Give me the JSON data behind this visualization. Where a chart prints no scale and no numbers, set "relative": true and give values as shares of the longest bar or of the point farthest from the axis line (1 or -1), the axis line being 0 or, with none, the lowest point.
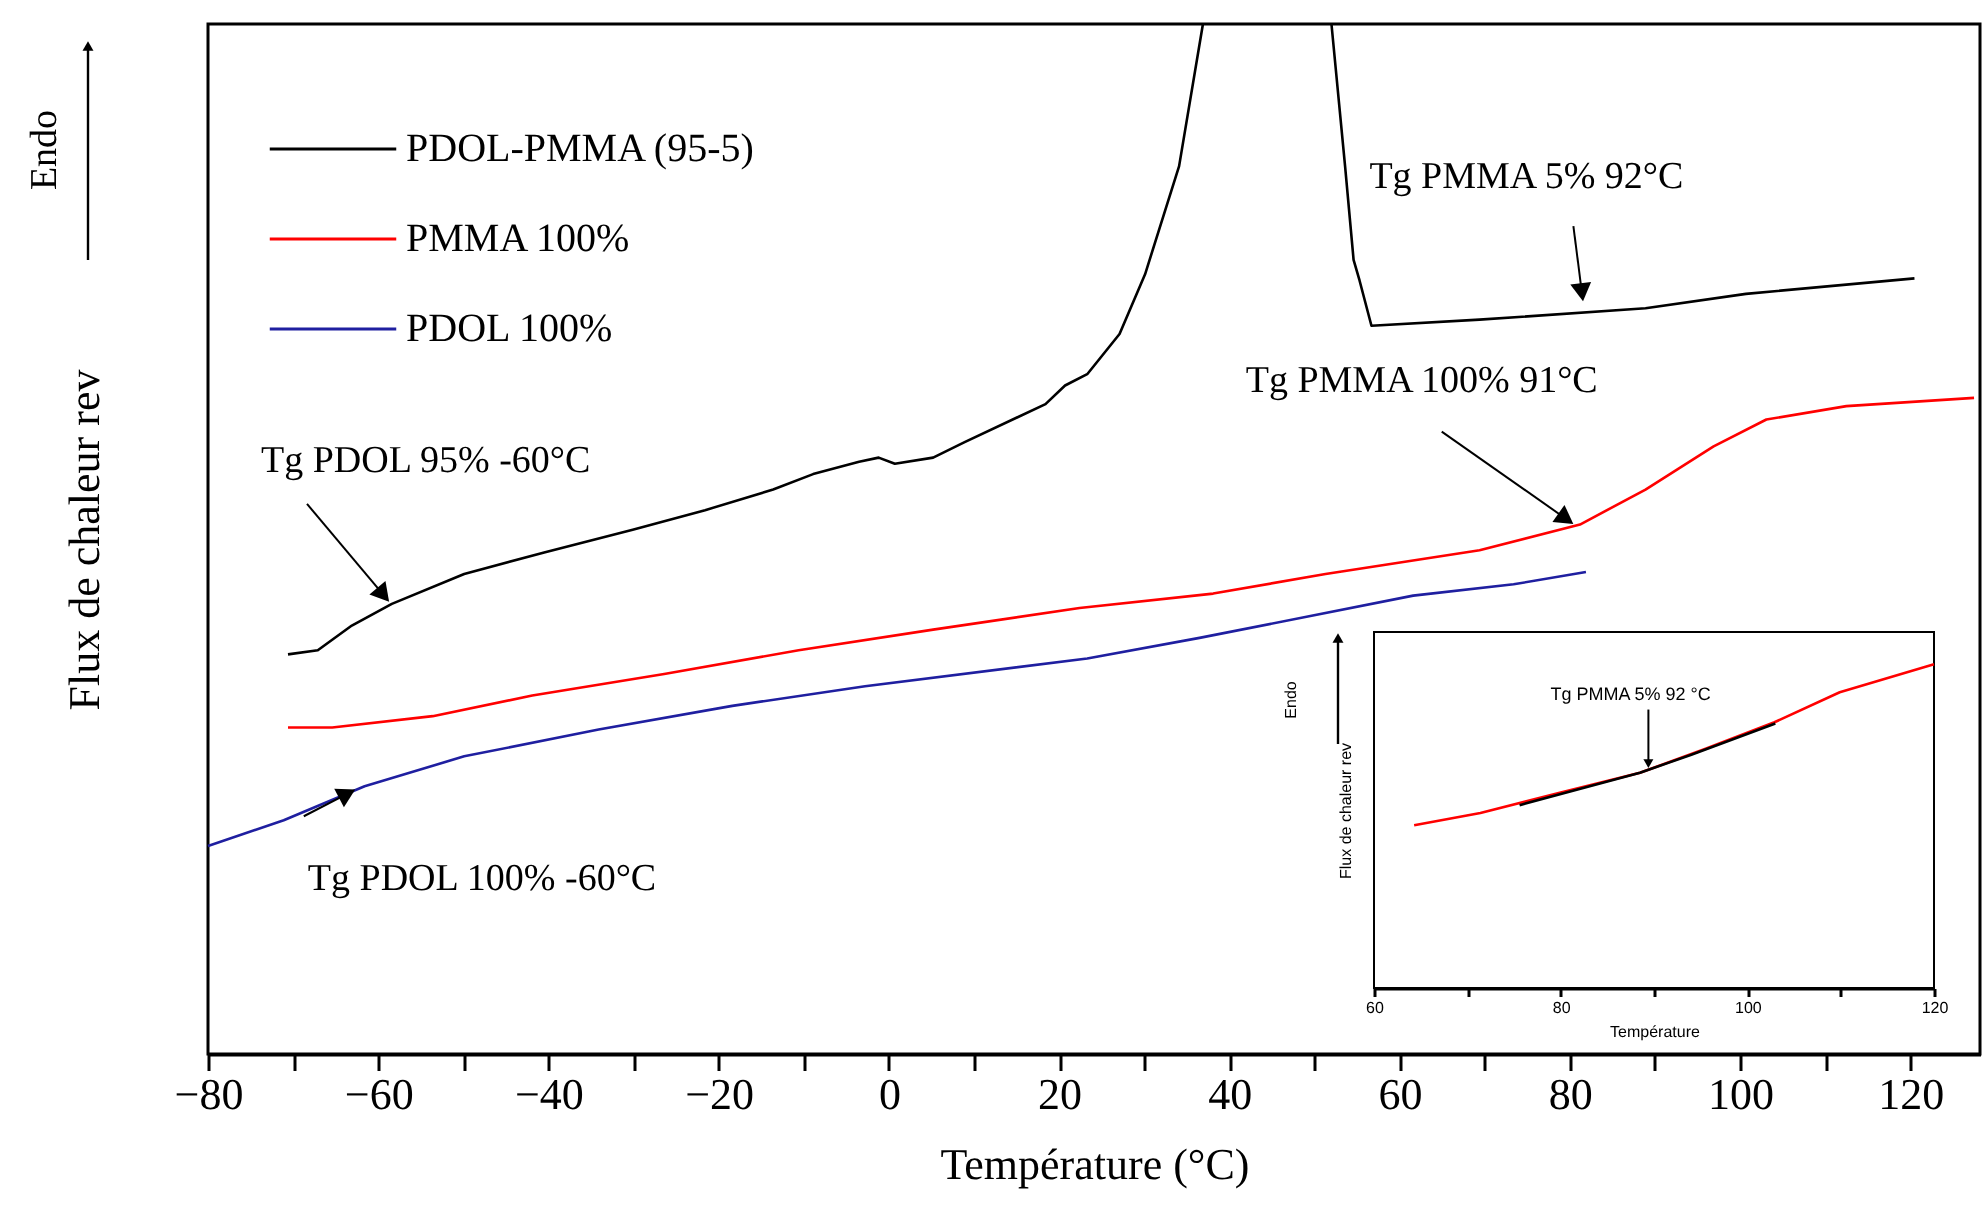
{
  "chart_data": [
    {
      "type": "line",
      "xlabel": "Température (°C)",
      "ylabel": "Flux de chaleur rev",
      "relative": true,
      "xlim": [
        -80,
        128.2
      ],
      "xticks": [
        -80,
        {
          "value": -70,
          "label": null
        },
        -60,
        {
          "value": -50,
          "label": null
        },
        -40,
        {
          "value": -30,
          "label": null
        },
        -20,
        {
          "value": -10,
          "label": null
        },
        0,
        {
          "value": 10,
          "label": null
        },
        20,
        {
          "value": 30,
          "label": null
        },
        40,
        {
          "value": 50,
          "label": null
        },
        60,
        {
          "value": 70,
          "label": null
        },
        80,
        {
          "value": 90,
          "label": null
        },
        100,
        {
          "value": 110,
          "label": null
        },
        120
      ],
      "legend": "top left",
      "grid": false,
      "marker": "none",
      "line_style": "solid",
      "series": [
        {
          "name": "PDOL-PMMA (95-5)",
          "color": "#000000",
          "x": [
            -70.6,
            -67.1,
            -63.1,
            -58.4,
            -49.9,
            -40.5,
            -30.1,
            -21.6,
            -13.6,
            -8.9,
            -3.5,
            -1.2,
            0.7,
            5.2,
            8.9,
            18.4,
            20.7,
            23.3,
            27.1,
            30.1,
            34.1,
            36.9,
            44,
            52.0,
            53.6,
            54.6,
            55.3,
            56.7,
            69.4,
            88.9,
            100.7,
            120.5
          ],
          "values": [
            0.388,
            0.392,
            0.416,
            0.437,
            0.466,
            0.487,
            0.509,
            0.528,
            0.548,
            0.563,
            0.575,
            0.579,
            0.573,
            0.579,
            0.594,
            0.631,
            0.649,
            0.66,
            0.699,
            0.757,
            0.862,
            1.0,
            null,
            1.0,
            0.862,
            0.771,
            0.751,
            0.707,
            0.713,
            0.724,
            0.738,
            0.753
          ]
        },
        {
          "name": "PMMA 100%",
          "color": "#ff0000",
          "x": [
            -70.6,
            -65.4,
            -53.6,
            -41.9,
            -26.4,
            -10.6,
            5.2,
            22.4,
            38.1,
            51.3,
            69.4,
            81.2,
            88.9,
            96.9,
            103.1,
            112.5,
            127.5
          ],
          "values": [
            0.317,
            0.317,
            0.328,
            0.348,
            0.369,
            0.392,
            0.412,
            0.433,
            0.447,
            0.466,
            0.489,
            0.514,
            0.548,
            0.59,
            0.616,
            0.629,
            0.637
          ]
        },
        {
          "name": "PDOL 100%",
          "color": "#1f1fa0",
          "x": [
            -80,
            -71.1,
            -61.6,
            -49.9,
            -34.1,
            -18.4,
            -2.8,
            23.3,
            36.5,
            61.6,
            73.4,
            81.9
          ],
          "values": [
            0.202,
            0.227,
            0.26,
            0.289,
            0.315,
            0.338,
            0.357,
            0.384,
            0.404,
            0.445,
            0.456,
            0.468
          ]
        }
      ],
      "annotations": [
        "Endo",
        {
          "text": "Tg PDOL 95% -60°C",
          "x": -58.5,
          "y": 0.437
        },
        {
          "text": "Tg PDOL 100% -60°C",
          "x": -62.4,
          "y": 0.258
        },
        {
          "text": "Tg PMMA 5% 92°C",
          "x": 81.6,
          "y": 0.728
        },
        {
          "text": "Tg PMMA 100% 91°C",
          "x": 80.7,
          "y": 0.513
        }
      ]
    },
    {
      "type": "line",
      "xlabel": "Température",
      "ylabel": "Flux de chaleur rev",
      "relative": true,
      "xlim": [
        60,
        120
      ],
      "xticks": [
        60,
        {
          "value": 70,
          "label": null
        },
        80,
        {
          "value": 90,
          "label": null
        },
        100,
        {
          "value": 110,
          "label": null
        },
        120
      ],
      "grid": false,
      "marker": "none",
      "line_style": "solid",
      "series": [
        {
          "color": "#ff0000",
          "x": [
            64.3,
            71.4,
            79.9,
            88.5,
            95.6,
            102.9,
            109.9,
            120
          ],
          "values": [
            0.503,
            0.541,
            0.603,
            0.665,
            0.74,
            0.821,
            0.914,
            1.0
          ]
        },
        {
          "color": "#000000",
          "x": [
            75.6,
            88.5,
            94.0,
            103.0
          ],
          "values": [
            0.565,
            0.665,
            0.721,
            0.817
          ]
        }
      ],
      "annotations": [
        "Endo",
        {
          "text": "Tg PMMA 5% 92 °C",
          "x": 89.4,
          "y": 0.675
        }
      ]
    }
  ]
}
